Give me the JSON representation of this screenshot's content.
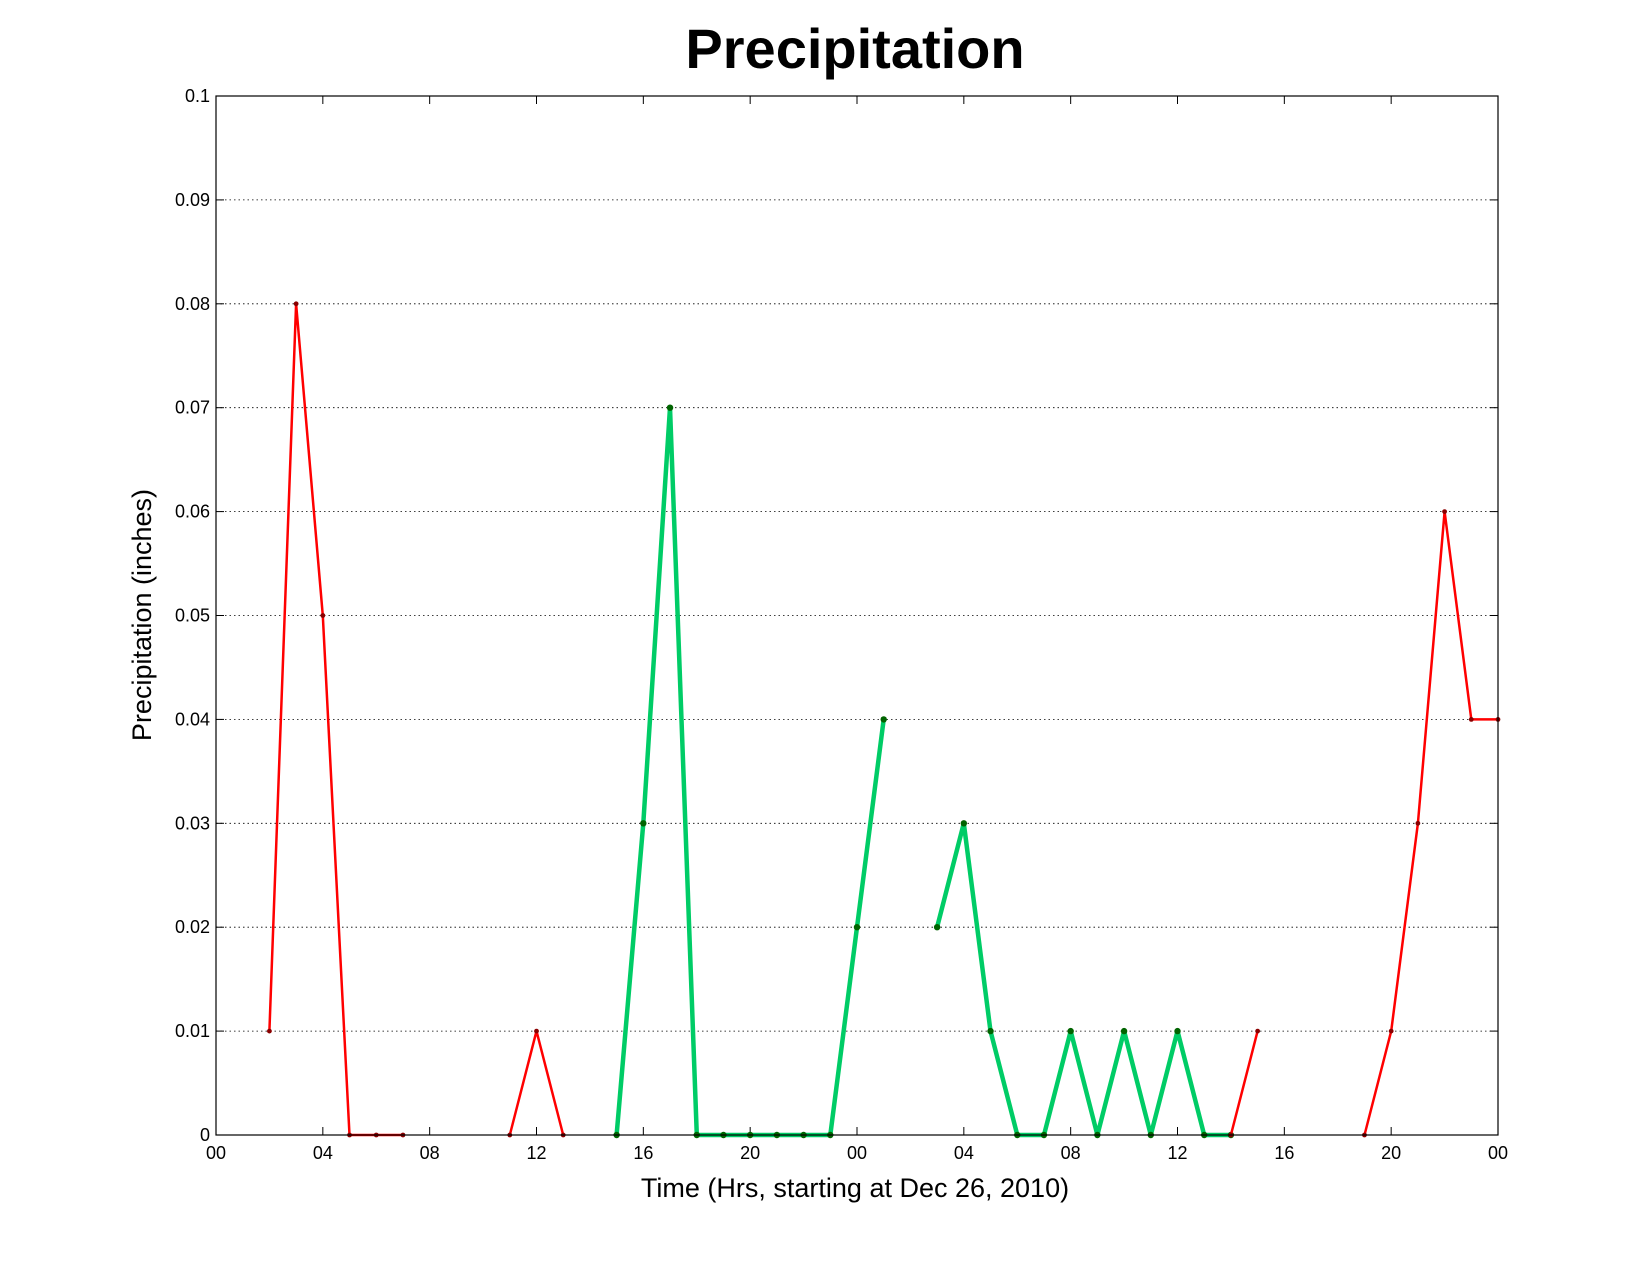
{
  "chart_data": {
    "type": "line",
    "title": "Precipitation",
    "xlabel": "Time (Hrs, starting at Dec 26, 2010)",
    "ylabel": "Precipitation (inches)",
    "xlim": [
      0,
      48
    ],
    "ylim": [
      0,
      0.1
    ],
    "x_ticks": [
      {
        "x": 0,
        "label": "00"
      },
      {
        "x": 4,
        "label": "04"
      },
      {
        "x": 8,
        "label": "08"
      },
      {
        "x": 12,
        "label": "12"
      },
      {
        "x": 16,
        "label": "16"
      },
      {
        "x": 20,
        "label": "20"
      },
      {
        "x": 24,
        "label": "00"
      },
      {
        "x": 28,
        "label": "04"
      },
      {
        "x": 32,
        "label": "08"
      },
      {
        "x": 36,
        "label": "12"
      },
      {
        "x": 40,
        "label": "16"
      },
      {
        "x": 44,
        "label": "20"
      },
      {
        "x": 48,
        "label": "00"
      }
    ],
    "y_ticks": [
      {
        "y": 0,
        "label": "0"
      },
      {
        "y": 0.01,
        "label": "0.01"
      },
      {
        "y": 0.02,
        "label": "0.02"
      },
      {
        "y": 0.03,
        "label": "0.03"
      },
      {
        "y": 0.04,
        "label": "0.04"
      },
      {
        "y": 0.05,
        "label": "0.05"
      },
      {
        "y": 0.06,
        "label": "0.06"
      },
      {
        "y": 0.07,
        "label": "0.07"
      },
      {
        "y": 0.08,
        "label": "0.08"
      },
      {
        "y": 0.09,
        "label": "0.09"
      },
      {
        "y": 0.1,
        "label": "0.1"
      }
    ],
    "grid": "horizontal-dotted",
    "series": [
      {
        "color": "#ff0000",
        "marker_color": "#8b0000",
        "width": "thin",
        "points": [
          [
            2,
            0.01
          ],
          [
            3,
            0.08
          ],
          [
            4,
            0.05
          ],
          [
            5,
            0
          ],
          [
            6,
            0
          ],
          [
            7,
            0
          ]
        ]
      },
      {
        "color": "#ff0000",
        "marker_color": "#8b0000",
        "width": "thin",
        "points": [
          [
            11,
            0
          ],
          [
            12,
            0.01
          ],
          [
            13,
            0
          ]
        ]
      },
      {
        "color": "#00cc66",
        "marker_color": "#006400",
        "width": "thick",
        "points": [
          [
            15,
            0
          ],
          [
            16,
            0.03
          ],
          [
            17,
            0.07
          ],
          [
            18,
            0
          ],
          [
            19,
            0
          ],
          [
            20,
            0
          ],
          [
            21,
            0
          ],
          [
            22,
            0
          ],
          [
            23,
            0
          ],
          [
            24,
            0.02
          ],
          [
            25,
            0.04
          ]
        ]
      },
      {
        "color": "#00cc66",
        "marker_color": "#006400",
        "width": "thick",
        "points": [
          [
            27,
            0.02
          ],
          [
            28,
            0.03
          ],
          [
            29,
            0.01
          ],
          [
            30,
            0
          ],
          [
            31,
            0
          ],
          [
            32,
            0.01
          ],
          [
            33,
            0
          ],
          [
            34,
            0.01
          ],
          [
            35,
            0
          ],
          [
            36,
            0.01
          ],
          [
            37,
            0
          ],
          [
            38,
            0
          ]
        ]
      },
      {
        "color": "#ff0000",
        "marker_color": "#8b0000",
        "width": "thin",
        "points": [
          [
            38,
            0
          ],
          [
            39,
            0.01
          ]
        ]
      },
      {
        "color": "#ff0000",
        "marker_color": "#8b0000",
        "width": "thin",
        "points": [
          [
            43,
            0
          ],
          [
            44,
            0.01
          ],
          [
            45,
            0.03
          ],
          [
            46,
            0.06
          ],
          [
            47,
            0.04
          ],
          [
            48,
            0.04
          ]
        ]
      }
    ]
  }
}
